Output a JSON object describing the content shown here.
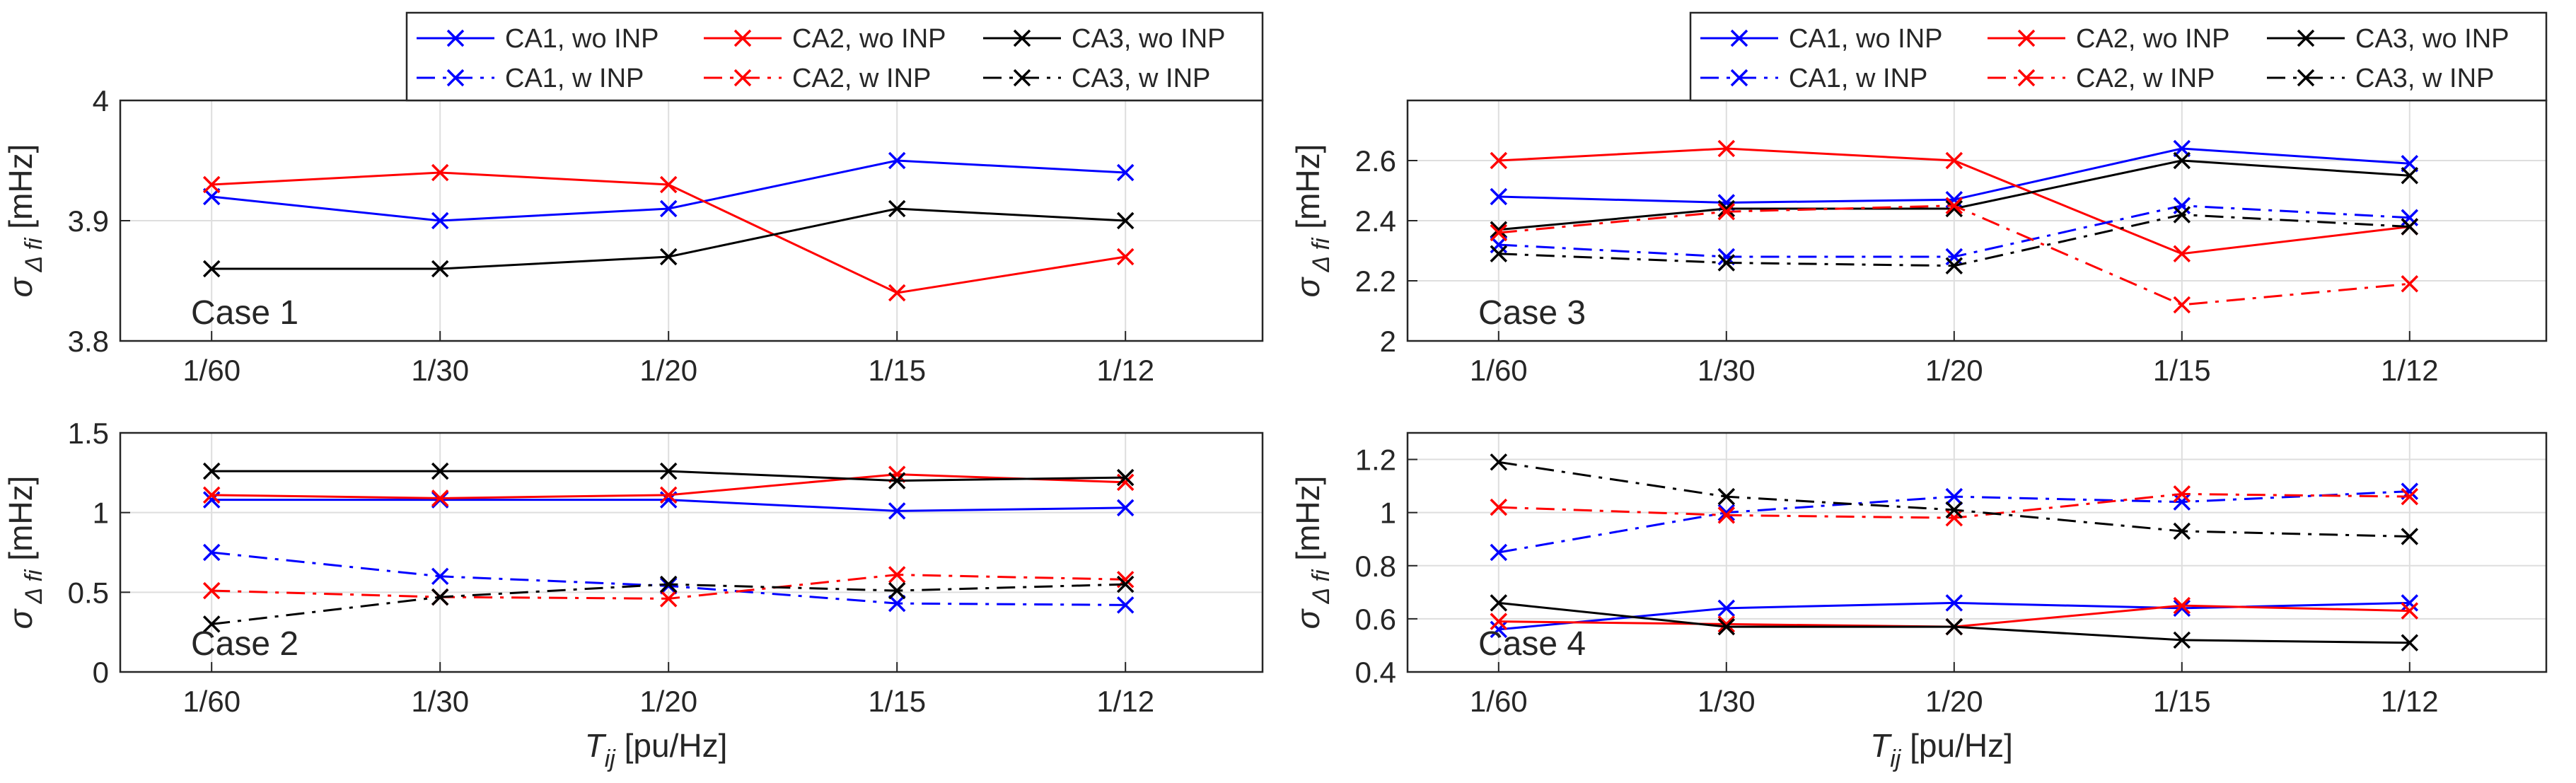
{
  "colors": {
    "CA1": "#0000ff",
    "CA2": "#ff0000",
    "CA3": "#000000",
    "grid": "#dedede",
    "axis": "#262626"
  },
  "legend": {
    "top": [
      "CA1, wo INP",
      "CA2, wo INP",
      "CA3, wo INP"
    ],
    "bottom": [
      "CA1, w INP",
      "CA2, w INP",
      "CA3, w INP"
    ]
  },
  "axes_text": {
    "ylabel_sigma": "σ",
    "ylabel_sub": "Δ fi",
    "ylabel_unit": "[mHz]",
    "xlabel_T": "T",
    "xlabel_sub": "ij",
    "xlabel_unit": "[pu/Hz]"
  },
  "chart_data": [
    {
      "type": "line",
      "annotation": "Case 1",
      "categories": [
        "1/60",
        "1/30",
        "1/20",
        "1/15",
        "1/12"
      ],
      "xlim": [
        0.6,
        5.6
      ],
      "ylim": [
        3.8,
        4.0
      ],
      "yticks": [
        "3.8",
        "3.9",
        "4"
      ],
      "grid": true,
      "legend_position": "top",
      "series": [
        {
          "name": "CA1, wo INP",
          "color": "CA1",
          "dash": "solid",
          "values": [
            3.92,
            3.9,
            3.91,
            3.95,
            3.94
          ]
        },
        {
          "name": "CA2, wo INP",
          "color": "CA2",
          "dash": "solid",
          "values": [
            3.93,
            3.94,
            3.93,
            3.84,
            3.87
          ]
        },
        {
          "name": "CA3, wo INP",
          "color": "CA3",
          "dash": "solid",
          "values": [
            3.86,
            3.86,
            3.87,
            3.91,
            3.9
          ]
        }
      ]
    },
    {
      "type": "line",
      "annotation": "Case 3",
      "categories": [
        "1/60",
        "1/30",
        "1/20",
        "1/15",
        "1/12"
      ],
      "xlim": [
        0.6,
        5.6
      ],
      "ylim": [
        2.0,
        2.8
      ],
      "yticks": [
        "2",
        "2.2",
        "2.4",
        "2.6"
      ],
      "grid": true,
      "legend_position": "top",
      "series": [
        {
          "name": "CA1, wo INP",
          "color": "CA1",
          "dash": "solid",
          "values": [
            2.48,
            2.46,
            2.47,
            2.64,
            2.59
          ]
        },
        {
          "name": "CA2, wo INP",
          "color": "CA2",
          "dash": "solid",
          "values": [
            2.6,
            2.64,
            2.6,
            2.29,
            2.38
          ]
        },
        {
          "name": "CA3, wo INP",
          "color": "CA3",
          "dash": "solid",
          "values": [
            2.37,
            2.44,
            2.44,
            2.6,
            2.55
          ]
        },
        {
          "name": "CA1, w INP",
          "color": "CA1",
          "dash": "dashdot",
          "values": [
            2.32,
            2.28,
            2.28,
            2.45,
            2.41
          ]
        },
        {
          "name": "CA2, w INP",
          "color": "CA2",
          "dash": "dashdot",
          "values": [
            2.36,
            2.43,
            2.45,
            2.12,
            2.19
          ]
        },
        {
          "name": "CA3, w INP",
          "color": "CA3",
          "dash": "dashdot",
          "values": [
            2.29,
            2.26,
            2.25,
            2.42,
            2.38
          ]
        }
      ]
    },
    {
      "type": "line",
      "annotation": "Case 2",
      "categories": [
        "1/60",
        "1/30",
        "1/20",
        "1/15",
        "1/12"
      ],
      "xlim": [
        0.6,
        5.6
      ],
      "ylim": [
        0,
        1.5
      ],
      "yticks": [
        "0",
        "0.5",
        "1",
        "1.5"
      ],
      "grid": true,
      "xlabel": true,
      "series": [
        {
          "name": "CA1, wo INP",
          "color": "CA1",
          "dash": "solid",
          "values": [
            1.08,
            1.08,
            1.08,
            1.01,
            1.03
          ]
        },
        {
          "name": "CA2, wo INP",
          "color": "CA2",
          "dash": "solid",
          "values": [
            1.11,
            1.09,
            1.11,
            1.24,
            1.19
          ]
        },
        {
          "name": "CA3, wo INP",
          "color": "CA3",
          "dash": "solid",
          "values": [
            1.26,
            1.26,
            1.26,
            1.2,
            1.22
          ]
        },
        {
          "name": "CA1, w INP",
          "color": "CA1",
          "dash": "dashdot",
          "values": [
            0.75,
            0.6,
            0.54,
            0.43,
            0.42
          ]
        },
        {
          "name": "CA2, w INP",
          "color": "CA2",
          "dash": "dashdot",
          "values": [
            0.51,
            0.47,
            0.46,
            0.61,
            0.58
          ]
        },
        {
          "name": "CA3, w INP",
          "color": "CA3",
          "dash": "dashdot",
          "values": [
            0.3,
            0.47,
            0.55,
            0.51,
            0.55
          ]
        }
      ]
    },
    {
      "type": "line",
      "annotation": "Case 4",
      "categories": [
        "1/60",
        "1/30",
        "1/20",
        "1/15",
        "1/12"
      ],
      "xlim": [
        0.6,
        5.6
      ],
      "ylim": [
        0.4,
        1.3
      ],
      "yticks": [
        "0.4",
        "0.6",
        "0.8",
        "1",
        "1.2"
      ],
      "grid": true,
      "xlabel": true,
      "series": [
        {
          "name": "CA1, wo INP",
          "color": "CA1",
          "dash": "solid",
          "values": [
            0.56,
            0.64,
            0.66,
            0.64,
            0.66
          ]
        },
        {
          "name": "CA2, wo INP",
          "color": "CA2",
          "dash": "solid",
          "values": [
            0.59,
            0.58,
            0.57,
            0.65,
            0.63
          ]
        },
        {
          "name": "CA3, wo INP",
          "color": "CA3",
          "dash": "solid",
          "values": [
            0.66,
            0.57,
            0.57,
            0.52,
            0.51
          ]
        },
        {
          "name": "CA1, w INP",
          "color": "CA1",
          "dash": "dashdot",
          "values": [
            0.85,
            1.0,
            1.06,
            1.04,
            1.08
          ]
        },
        {
          "name": "CA2, w INP",
          "color": "CA2",
          "dash": "dashdot",
          "values": [
            1.02,
            0.99,
            0.98,
            1.07,
            1.06
          ]
        },
        {
          "name": "CA3, w INP",
          "color": "CA3",
          "dash": "dashdot",
          "values": [
            1.19,
            1.06,
            1.01,
            0.93,
            0.91
          ]
        }
      ]
    }
  ]
}
